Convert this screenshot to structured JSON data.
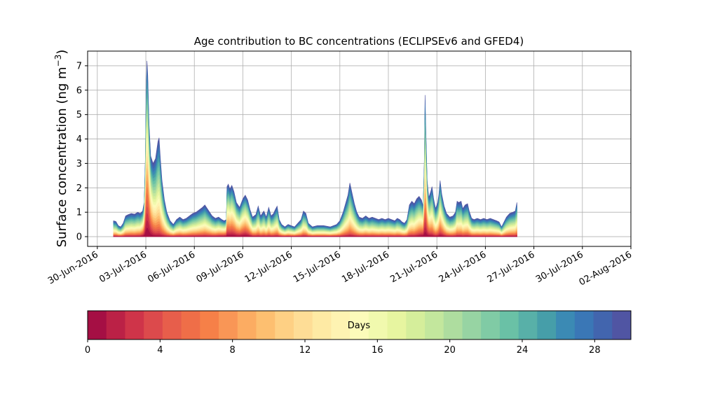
{
  "chart_data": {
    "type": "area",
    "title": "Age contribution to BC concentrations (ECLIPSEv6 and GFED4)",
    "ylabel_prefix": "Surface concentration (ng m",
    "ylabel_exp": "−3",
    "ylabel_suffix": ")",
    "xlabel": "",
    "xlim": [
      -0.6,
      33.0
    ],
    "ylim": [
      -0.4,
      7.6
    ],
    "yticks": [
      0,
      1,
      2,
      3,
      4,
      5,
      6,
      7
    ],
    "xticks": [
      {
        "label": "30-Jun-2016",
        "day": 0
      },
      {
        "label": "03-Jul-2016",
        "day": 3
      },
      {
        "label": "06-Jul-2016",
        "day": 6
      },
      {
        "label": "09-Jul-2016",
        "day": 9
      },
      {
        "label": "12-Jul-2016",
        "day": 12
      },
      {
        "label": "15-Jul-2016",
        "day": 15
      },
      {
        "label": "18-Jul-2016",
        "day": 18
      },
      {
        "label": "21-Jul-2016",
        "day": 21
      },
      {
        "label": "24-Jul-2016",
        "day": 24
      },
      {
        "label": "27-Jul-2016",
        "day": 27
      },
      {
        "label": "30-Jul-2016",
        "day": 30
      },
      {
        "label": "02-Aug-2016",
        "day": 33
      }
    ],
    "grid": true,
    "total_series_points": [
      [
        1.0,
        0.65
      ],
      [
        1.15,
        0.62
      ],
      [
        1.3,
        0.45
      ],
      [
        1.45,
        0.4
      ],
      [
        1.6,
        0.55
      ],
      [
        1.75,
        0.85
      ],
      [
        1.9,
        0.9
      ],
      [
        2.1,
        0.95
      ],
      [
        2.3,
        0.92
      ],
      [
        2.5,
        1.0
      ],
      [
        2.65,
        0.95
      ],
      [
        2.8,
        1.05
      ],
      [
        2.9,
        1.4
      ],
      [
        2.97,
        3.2
      ],
      [
        3.02,
        6.0
      ],
      [
        3.07,
        7.2
      ],
      [
        3.12,
        6.6
      ],
      [
        3.2,
        4.6
      ],
      [
        3.3,
        3.3
      ],
      [
        3.45,
        3.0
      ],
      [
        3.6,
        3.2
      ],
      [
        3.75,
        3.9
      ],
      [
        3.82,
        4.05
      ],
      [
        3.9,
        3.2
      ],
      [
        4.0,
        2.3
      ],
      [
        4.15,
        1.5
      ],
      [
        4.3,
        1.0
      ],
      [
        4.5,
        0.65
      ],
      [
        4.7,
        0.5
      ],
      [
        4.9,
        0.7
      ],
      [
        5.1,
        0.8
      ],
      [
        5.3,
        0.7
      ],
      [
        5.5,
        0.75
      ],
      [
        5.7,
        0.85
      ],
      [
        5.9,
        0.95
      ],
      [
        6.1,
        1.0
      ],
      [
        6.3,
        1.1
      ],
      [
        6.5,
        1.2
      ],
      [
        6.65,
        1.3
      ],
      [
        6.8,
        1.15
      ],
      [
        6.95,
        1.0
      ],
      [
        7.1,
        0.85
      ],
      [
        7.3,
        0.75
      ],
      [
        7.5,
        0.8
      ],
      [
        7.7,
        0.7
      ],
      [
        7.85,
        0.65
      ],
      [
        7.98,
        0.7
      ],
      [
        8.02,
        2.05
      ],
      [
        8.1,
        2.15
      ],
      [
        8.2,
        1.95
      ],
      [
        8.32,
        2.1
      ],
      [
        8.45,
        1.85
      ],
      [
        8.6,
        1.4
      ],
      [
        8.8,
        1.2
      ],
      [
        9.0,
        1.55
      ],
      [
        9.15,
        1.7
      ],
      [
        9.3,
        1.5
      ],
      [
        9.45,
        1.1
      ],
      [
        9.6,
        0.8
      ],
      [
        9.8,
        0.9
      ],
      [
        9.95,
        1.25
      ],
      [
        10.1,
        0.85
      ],
      [
        10.3,
        1.05
      ],
      [
        10.45,
        0.8
      ],
      [
        10.6,
        1.2
      ],
      [
        10.75,
        0.85
      ],
      [
        10.9,
        0.95
      ],
      [
        11.0,
        1.1
      ],
      [
        11.12,
        1.25
      ],
      [
        11.25,
        0.7
      ],
      [
        11.4,
        0.5
      ],
      [
        11.6,
        0.4
      ],
      [
        11.8,
        0.5
      ],
      [
        12.0,
        0.45
      ],
      [
        12.2,
        0.4
      ],
      [
        12.4,
        0.55
      ],
      [
        12.6,
        0.7
      ],
      [
        12.75,
        1.05
      ],
      [
        12.9,
        0.95
      ],
      [
        13.05,
        0.55
      ],
      [
        13.3,
        0.4
      ],
      [
        13.6,
        0.45
      ],
      [
        14.0,
        0.45
      ],
      [
        14.4,
        0.4
      ],
      [
        14.8,
        0.5
      ],
      [
        15.0,
        0.65
      ],
      [
        15.2,
        1.0
      ],
      [
        15.35,
        1.35
      ],
      [
        15.5,
        1.7
      ],
      [
        15.62,
        2.2
      ],
      [
        15.75,
        1.8
      ],
      [
        15.9,
        1.35
      ],
      [
        16.05,
        1.0
      ],
      [
        16.2,
        0.8
      ],
      [
        16.4,
        0.75
      ],
      [
        16.6,
        0.85
      ],
      [
        16.8,
        0.75
      ],
      [
        17.0,
        0.8
      ],
      [
        17.2,
        0.75
      ],
      [
        17.4,
        0.7
      ],
      [
        17.6,
        0.75
      ],
      [
        17.8,
        0.7
      ],
      [
        18.0,
        0.75
      ],
      [
        18.2,
        0.7
      ],
      [
        18.4,
        0.65
      ],
      [
        18.55,
        0.75
      ],
      [
        18.7,
        0.7
      ],
      [
        18.85,
        0.6
      ],
      [
        19.0,
        0.55
      ],
      [
        19.15,
        0.7
      ],
      [
        19.3,
        1.3
      ],
      [
        19.45,
        1.45
      ],
      [
        19.6,
        1.35
      ],
      [
        19.75,
        1.55
      ],
      [
        19.9,
        1.65
      ],
      [
        20.05,
        1.5
      ],
      [
        20.15,
        1.25
      ],
      [
        20.22,
        3.0
      ],
      [
        20.27,
        5.8
      ],
      [
        20.32,
        4.3
      ],
      [
        20.4,
        2.3
      ],
      [
        20.5,
        1.6
      ],
      [
        20.62,
        1.85
      ],
      [
        20.7,
        2.05
      ],
      [
        20.8,
        1.55
      ],
      [
        20.92,
        1.15
      ],
      [
        21.05,
        1.4
      ],
      [
        21.12,
        1.7
      ],
      [
        21.2,
        2.3
      ],
      [
        21.3,
        1.75
      ],
      [
        21.45,
        1.25
      ],
      [
        21.6,
        0.95
      ],
      [
        21.8,
        0.8
      ],
      [
        22.0,
        0.85
      ],
      [
        22.15,
        1.0
      ],
      [
        22.25,
        1.45
      ],
      [
        22.35,
        1.4
      ],
      [
        22.5,
        1.45
      ],
      [
        22.6,
        1.15
      ],
      [
        22.75,
        1.3
      ],
      [
        22.9,
        1.35
      ],
      [
        23.0,
        1.05
      ],
      [
        23.15,
        0.75
      ],
      [
        23.3,
        0.7
      ],
      [
        23.5,
        0.75
      ],
      [
        23.7,
        0.7
      ],
      [
        23.9,
        0.75
      ],
      [
        24.1,
        0.7
      ],
      [
        24.3,
        0.75
      ],
      [
        24.5,
        0.7
      ],
      [
        24.7,
        0.65
      ],
      [
        24.85,
        0.6
      ],
      [
        25.0,
        0.4
      ],
      [
        25.15,
        0.6
      ],
      [
        25.3,
        0.8
      ],
      [
        25.5,
        0.95
      ],
      [
        25.7,
        1.0
      ],
      [
        25.85,
        1.05
      ],
      [
        25.95,
        1.4
      ]
    ],
    "colorbar": {
      "label": "Days",
      "min": 0,
      "max": 30,
      "ticks": [
        0,
        4,
        8,
        12,
        16,
        20,
        24,
        28
      ],
      "colors": [
        "#a50f44",
        "#bb2146",
        "#cf3449",
        "#dc4a4c",
        "#e75e4b",
        "#ef6e48",
        "#f68048",
        "#f99656",
        "#fcac62",
        "#fdbf70",
        "#fed084",
        "#fedd96",
        "#feeaa4",
        "#fef3b2",
        "#fcfbba",
        "#f1f9ae",
        "#e7f5a0",
        "#d5ee9b",
        "#c3e79d",
        "#aedd9f",
        "#97d4a3",
        "#80cba5",
        "#6ac1a6",
        "#58b0a8",
        "#469ea9",
        "#3b8ab4",
        "#3a77b6",
        "#4265ae",
        "#5055a3"
      ]
    }
  }
}
